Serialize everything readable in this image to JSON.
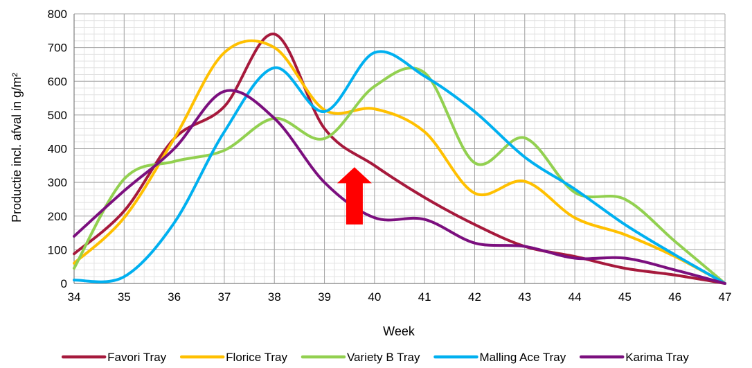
{
  "chart_data": {
    "type": "line",
    "title": "",
    "xlabel": "Week",
    "ylabel": "Productie incl. afval in g/m²",
    "xlim": [
      34,
      47
    ],
    "ylim": [
      0,
      800
    ],
    "x_ticks": [
      34,
      35,
      36,
      37,
      38,
      39,
      40,
      41,
      42,
      43,
      44,
      45,
      46,
      47
    ],
    "y_ticks": [
      0,
      100,
      200,
      300,
      400,
      500,
      600,
      700,
      800
    ],
    "grid": true,
    "legend_position": "bottom",
    "series": [
      {
        "name": "Favori  Tray",
        "color": "#A6193C",
        "x": [
          34,
          35,
          36,
          37,
          38,
          39,
          40,
          41,
          42,
          43,
          44,
          45,
          46,
          47
        ],
        "values": [
          88,
          215,
          430,
          525,
          740,
          460,
          350,
          255,
          175,
          110,
          80,
          45,
          25,
          0
        ]
      },
      {
        "name": "Florice  Tray",
        "color": "#FFC000",
        "x": [
          34,
          35,
          36,
          37,
          38,
          39,
          40,
          41,
          42,
          43,
          44,
          45,
          46,
          47
        ],
        "values": [
          60,
          195,
          430,
          685,
          700,
          515,
          518,
          450,
          268,
          303,
          195,
          145,
          80,
          0
        ]
      },
      {
        "name": "Variety B  Tray",
        "color": "#92D050",
        "x": [
          34,
          35,
          36,
          37,
          38,
          39,
          40,
          41,
          42,
          43,
          44,
          45,
          46,
          47
        ],
        "values": [
          45,
          310,
          362,
          395,
          490,
          430,
          585,
          625,
          358,
          432,
          270,
          250,
          125,
          0
        ]
      },
      {
        "name": "Malling Ace Tray",
        "color": "#00B0F0",
        "x": [
          34,
          35,
          36,
          37,
          38,
          39,
          40,
          41,
          42,
          43,
          44,
          45,
          46,
          47
        ],
        "values": [
          10,
          20,
          180,
          450,
          640,
          510,
          685,
          615,
          510,
          375,
          280,
          175,
          85,
          0
        ]
      },
      {
        "name": "Karima Tray",
        "color": "#7B0F7E",
        "x": [
          34,
          35,
          36,
          37,
          38,
          39,
          40,
          41,
          42,
          43,
          44,
          45,
          46,
          47
        ],
        "values": [
          140,
          275,
          400,
          570,
          490,
          300,
          195,
          190,
          120,
          110,
          75,
          75,
          40,
          0
        ]
      }
    ],
    "annotation": {
      "type": "arrow",
      "direction": "up",
      "color": "#FF0000",
      "x": 39.6,
      "y_from": 175,
      "y_to": 345
    }
  }
}
